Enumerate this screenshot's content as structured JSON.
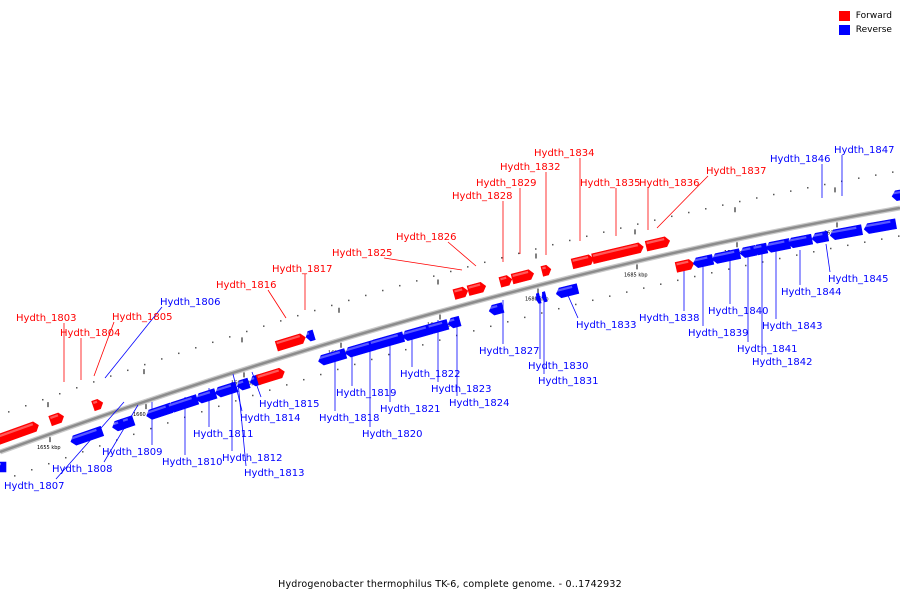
{
  "caption": "Hydrogenobacter thermophilus TK-6, complete genome. - 0..1742932",
  "legend": [
    {
      "label": "Forward",
      "color": "#ff0000"
    },
    {
      "label": "Reverse",
      "color": "#0000ff"
    }
  ],
  "colors": {
    "forward": "#ff0000",
    "reverse": "#0000ff",
    "backbone": "#8c8c8c"
  },
  "ticks": [
    {
      "kbp": 1655,
      "label": "1655 kbp"
    },
    {
      "kbp": 1660,
      "label": "1660 kbp"
    },
    {
      "kbp": 1665,
      "label": "1665 kbp"
    },
    {
      "kbp": 1670,
      "label": "1670 kbp"
    },
    {
      "kbp": 1675,
      "label": "1675 kbp"
    },
    {
      "kbp": 1680,
      "label": "1680 kbp"
    },
    {
      "kbp": 1685,
      "label": "1685 kbp"
    },
    {
      "kbp": 1690,
      "label": "1690 kbp"
    },
    {
      "kbp": 1695,
      "label": "1695 kbp"
    }
  ],
  "genes": [
    {
      "id": "Hydth_1803",
      "strand": "forward"
    },
    {
      "id": "Hydth_1804",
      "strand": "forward"
    },
    {
      "id": "Hydth_1805",
      "strand": "forward"
    },
    {
      "id": "Hydth_1806",
      "strand": "reverse"
    },
    {
      "id": "Hydth_1807",
      "strand": "reverse"
    },
    {
      "id": "Hydth_1808",
      "strand": "reverse"
    },
    {
      "id": "Hydth_1809",
      "strand": "reverse"
    },
    {
      "id": "Hydth_1810",
      "strand": "reverse"
    },
    {
      "id": "Hydth_1811",
      "strand": "reverse"
    },
    {
      "id": "Hydth_1812",
      "strand": "reverse"
    },
    {
      "id": "Hydth_1813",
      "strand": "reverse"
    },
    {
      "id": "Hydth_1814",
      "strand": "reverse"
    },
    {
      "id": "Hydth_1815",
      "strand": "reverse"
    },
    {
      "id": "Hydth_1816",
      "strand": "forward"
    },
    {
      "id": "Hydth_1817",
      "strand": "forward"
    },
    {
      "id": "Hydth_1818",
      "strand": "reverse"
    },
    {
      "id": "Hydth_1819",
      "strand": "reverse"
    },
    {
      "id": "Hydth_1820",
      "strand": "reverse"
    },
    {
      "id": "Hydth_1821",
      "strand": "reverse"
    },
    {
      "id": "Hydth_1822",
      "strand": "reverse"
    },
    {
      "id": "Hydth_1823",
      "strand": "reverse"
    },
    {
      "id": "Hydth_1824",
      "strand": "reverse"
    },
    {
      "id": "Hydth_1825",
      "strand": "forward"
    },
    {
      "id": "Hydth_1826",
      "strand": "forward"
    },
    {
      "id": "Hydth_1827",
      "strand": "reverse"
    },
    {
      "id": "Hydth_1828",
      "strand": "forward"
    },
    {
      "id": "Hydth_1829",
      "strand": "forward"
    },
    {
      "id": "Hydth_1830",
      "strand": "reverse"
    },
    {
      "id": "Hydth_1831",
      "strand": "reverse"
    },
    {
      "id": "Hydth_1832",
      "strand": "forward"
    },
    {
      "id": "Hydth_1833",
      "strand": "reverse"
    },
    {
      "id": "Hydth_1834",
      "strand": "forward"
    },
    {
      "id": "Hydth_1835",
      "strand": "forward"
    },
    {
      "id": "Hydth_1836",
      "strand": "forward"
    },
    {
      "id": "Hydth_1837",
      "strand": "forward"
    },
    {
      "id": "Hydth_1838",
      "strand": "reverse"
    },
    {
      "id": "Hydth_1839",
      "strand": "reverse"
    },
    {
      "id": "Hydth_1840",
      "strand": "reverse"
    },
    {
      "id": "Hydth_1841",
      "strand": "reverse"
    },
    {
      "id": "Hydth_1842",
      "strand": "reverse"
    },
    {
      "id": "Hydth_1843",
      "strand": "reverse"
    },
    {
      "id": "Hydth_1844",
      "strand": "reverse"
    },
    {
      "id": "Hydth_1845",
      "strand": "reverse"
    },
    {
      "id": "Hydth_1846",
      "strand": "reverse"
    },
    {
      "id": "Hydth_1847",
      "strand": "reverse"
    }
  ]
}
